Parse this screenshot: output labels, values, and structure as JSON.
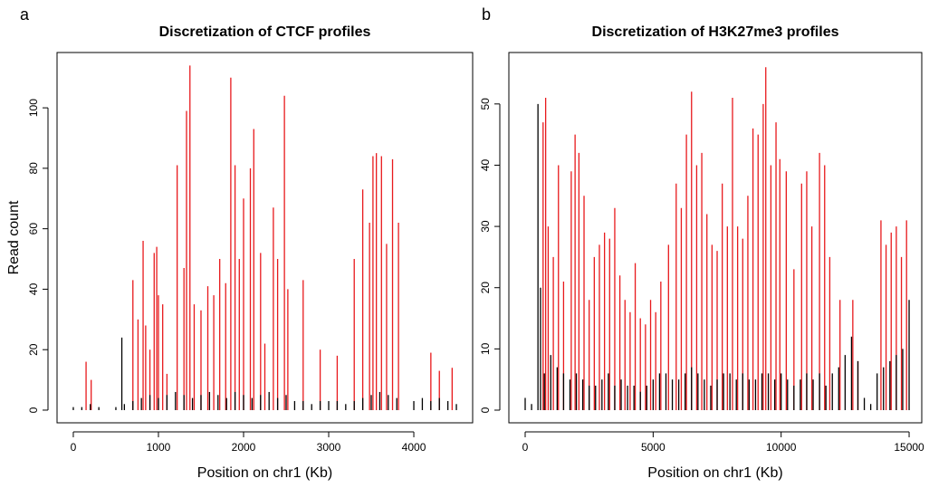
{
  "charts": [
    {
      "chart_data": {
        "type": "bar",
        "panel": "a",
        "title": "Discretization of CTCF profiles",
        "xlabel": "Position on chr1 (Kb)",
        "ylabel": "Read count",
        "xlim": [
          -191,
          4691
        ],
        "ylim": [
          -4.2,
          118.3
        ],
        "xticks": [
          0,
          1000,
          2000,
          3000,
          4000
        ],
        "yticks": [
          0,
          20,
          40,
          60,
          80,
          100
        ],
        "series": [
          {
            "color": "#e8191c",
            "x": [
              150,
              210,
              700,
              760,
              820,
              850,
              900,
              950,
              980,
              1000,
              1050,
              1100,
              1220,
              1300,
              1330,
              1370,
              1420,
              1500,
              1580,
              1650,
              1720,
              1790,
              1850,
              1900,
              1950,
              2000,
              2080,
              2120,
              2200,
              2250,
              2350,
              2400,
              2480,
              2520,
              2700,
              2900,
              3100,
              3300,
              3400,
              3480,
              3520,
              3560,
              3620,
              3680,
              3750,
              3820,
              4200,
              4300,
              4450
            ],
            "values": [
              16,
              10,
              43,
              30,
              56,
              28,
              20,
              52,
              54,
              38,
              35,
              12,
              81,
              47,
              99,
              114,
              35,
              33,
              41,
              38,
              50,
              42,
              110,
              81,
              50,
              70,
              80,
              93,
              52,
              22,
              67,
              50,
              104,
              40,
              43,
              20,
              18,
              50,
              73,
              62,
              84,
              85,
              84,
              55,
              83,
              62,
              19,
              13,
              14
            ]
          },
          {
            "color": "#000000",
            "x": [
              0,
              100,
              200,
              300,
              400,
              500,
              570,
              600,
              700,
              800,
              900,
              1000,
              1100,
              1200,
              1300,
              1400,
              1500,
              1600,
              1700,
              1800,
              1900,
              2000,
              2100,
              2200,
              2300,
              2400,
              2500,
              2600,
              2700,
              2800,
              2900,
              3000,
              3100,
              3200,
              3300,
              3400,
              3500,
              3600,
              3700,
              3800,
              4000,
              4100,
              4200,
              4300,
              4400,
              4500
            ],
            "values": [
              1,
              1,
              2,
              1,
              0,
              1,
              24,
              2,
              3,
              4,
              5,
              4,
              5,
              6,
              5,
              4,
              5,
              6,
              5,
              4,
              6,
              5,
              4,
              5,
              6,
              4,
              5,
              3,
              3,
              2,
              3,
              3,
              3,
              2,
              3,
              4,
              5,
              6,
              5,
              4,
              3,
              4,
              3,
              4,
              3,
              2
            ]
          }
        ]
      }
    },
    {
      "chart_data": {
        "type": "bar",
        "panel": "b",
        "title": "Discretization of H3K27me3 profiles",
        "xlabel": "Position on chr1 (Kb)",
        "xlim": [
          -637,
          15494
        ],
        "ylim": [
          -2.07,
          58.4
        ],
        "xticks": [
          0,
          5000,
          10000,
          15000
        ],
        "yticks": [
          0,
          10,
          20,
          30,
          40,
          50
        ],
        "series": [
          {
            "color": "#e8191c",
            "x": [
              700,
              800,
              900,
              1100,
              1300,
              1500,
              1800,
              1950,
              2100,
              2300,
              2500,
              2700,
              2900,
              3100,
              3300,
              3500,
              3700,
              3900,
              4100,
              4300,
              4500,
              4700,
              4900,
              5100,
              5300,
              5600,
              5900,
              6100,
              6300,
              6500,
              6700,
              6900,
              7100,
              7300,
              7500,
              7700,
              7900,
              8100,
              8300,
              8500,
              8700,
              8900,
              9100,
              9300,
              9400,
              9600,
              9800,
              9950,
              10200,
              10500,
              10800,
              11000,
              11200,
              11500,
              11700,
              11900,
              12300,
              12800,
              13000,
              13900,
              14100,
              14300,
              14500,
              14700,
              14900
            ],
            "values": [
              47,
              51,
              30,
              25,
              40,
              21,
              39,
              45,
              42,
              35,
              18,
              25,
              27,
              29,
              28,
              33,
              22,
              18,
              16,
              24,
              15,
              14,
              18,
              16,
              21,
              27,
              37,
              33,
              45,
              52,
              40,
              42,
              32,
              27,
              26,
              37,
              30,
              51,
              30,
              28,
              35,
              46,
              45,
              50,
              56,
              40,
              47,
              41,
              39,
              23,
              37,
              39,
              30,
              42,
              40,
              25,
              18,
              18,
              8,
              31,
              27,
              29,
              30,
              25,
              31
            ]
          },
          {
            "color": "#000000",
            "x": [
              0,
              250,
              500,
              600,
              750,
              1000,
              1250,
              1500,
              1750,
              2000,
              2250,
              2500,
              2750,
              3000,
              3250,
              3500,
              3750,
              4000,
              4250,
              4500,
              4750,
              5000,
              5250,
              5500,
              5750,
              6000,
              6250,
              6500,
              6750,
              7000,
              7250,
              7500,
              7750,
              8000,
              8250,
              8500,
              8750,
              9000,
              9250,
              9500,
              9750,
              10000,
              10250,
              10500,
              10750,
              11000,
              11250,
              11500,
              11750,
              12000,
              12250,
              12500,
              12750,
              13000,
              13250,
              13500,
              13750,
              14000,
              14250,
              14500,
              14750,
              15000
            ],
            "values": [
              2,
              1,
              50,
              20,
              6,
              9,
              7,
              6,
              5,
              6,
              5,
              4,
              4,
              5,
              6,
              4,
              5,
              4,
              4,
              3,
              4,
              5,
              6,
              6,
              5,
              5,
              6,
              7,
              6,
              5,
              4,
              5,
              6,
              6,
              5,
              6,
              5,
              5,
              6,
              6,
              5,
              6,
              5,
              4,
              5,
              6,
              5,
              6,
              4,
              6,
              7,
              9,
              12,
              8,
              2,
              1,
              6,
              7,
              8,
              9,
              10,
              18
            ]
          }
        ]
      }
    }
  ]
}
